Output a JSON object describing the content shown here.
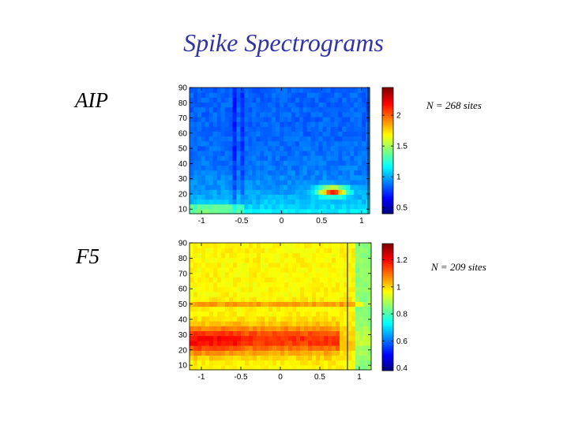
{
  "page": {
    "title": "Spike Spectrograms"
  },
  "chart_data": [
    {
      "type": "heatmap",
      "panel_label": "AIP",
      "annotation": "N = 268 sites",
      "xlim": [
        -1.15,
        1.1
      ],
      "ylim": [
        7,
        90
      ],
      "xticks": [
        -1,
        -0.5,
        0,
        0.5,
        1
      ],
      "xtick_labels": [
        "-1",
        "-0.5",
        "0",
        "0.5",
        "1"
      ],
      "yticks": [
        10,
        20,
        30,
        40,
        50,
        60,
        70,
        80,
        90
      ],
      "ytick_labels": [
        "10",
        "20",
        "30",
        "40",
        "50",
        "60",
        "70",
        "80",
        "90"
      ],
      "colorbar": {
        "range": [
          0.4,
          2.45
        ],
        "ticks": [
          0.5,
          1,
          1.5,
          2
        ],
        "tick_labels": [
          "0.5",
          "1",
          "1.5",
          "2"
        ]
      },
      "marker_line_x": 1.08
    },
    {
      "type": "heatmap",
      "panel_label": "F5",
      "annotation": "N = 209 sites",
      "xlim": [
        -1.15,
        1.15
      ],
      "ylim": [
        7,
        90
      ],
      "xticks": [
        -1,
        -0.5,
        0,
        0.5,
        1
      ],
      "xtick_labels": [
        "-1",
        "-0.5",
        "0",
        "0.5",
        "1"
      ],
      "yticks": [
        10,
        20,
        30,
        40,
        50,
        60,
        70,
        80,
        90
      ],
      "ytick_labels": [
        "10",
        "20",
        "30",
        "40",
        "50",
        "60",
        "70",
        "80",
        "90"
      ],
      "colorbar": {
        "range": [
          0.38,
          1.32
        ],
        "ticks": [
          0.4,
          0.6,
          0.8,
          1,
          1.2
        ],
        "tick_labels": [
          "0.4",
          "0.6",
          "0.8",
          "1",
          "1.2"
        ]
      },
      "marker_line_x": 0.85
    }
  ]
}
